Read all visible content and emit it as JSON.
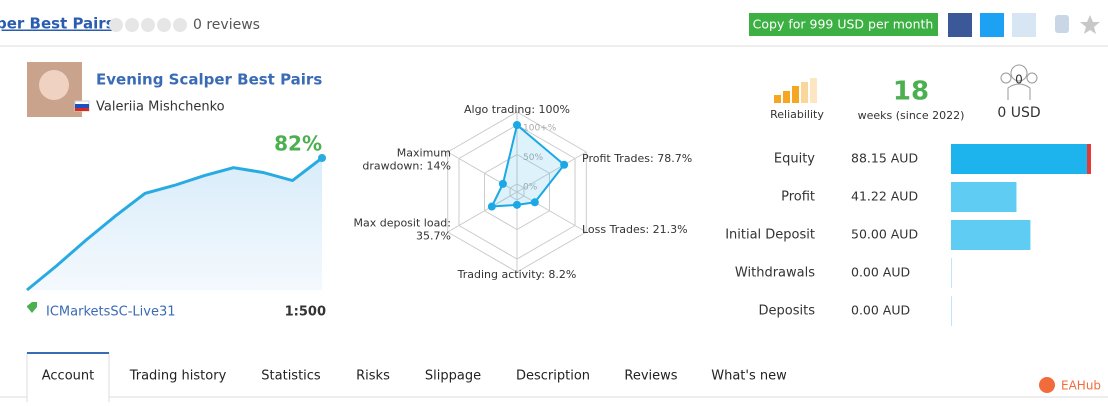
{
  "header": {
    "title": "per Best Pairs",
    "reviews": "0 reviews",
    "copy_button": "Copy for 999 USD per month"
  },
  "profile": {
    "name": "Evening Scalper Best Pairs",
    "author": "Valeriia Mishchenko",
    "growth": "82%",
    "broker": "ICMarketsSC-Live31",
    "leverage": "1:500"
  },
  "growth_chart": {
    "type": "line",
    "values": [
      0,
      15,
      31,
      46,
      60,
      65,
      71,
      76,
      73,
      68,
      82
    ],
    "color": "#29abe2"
  },
  "radar": {
    "type": "radar",
    "color": "#1aa9e6",
    "ticks": [
      {
        "value": 100,
        "label": "100+%"
      },
      {
        "value": 50,
        "label": "50%"
      },
      {
        "value": 0,
        "label": "0%"
      }
    ],
    "axes": [
      {
        "label": [
          "Algo trading: 100%"
        ],
        "value": 100
      },
      {
        "label": [
          "Profit Trades: 78.7%"
        ],
        "value": 78.7
      },
      {
        "label": [
          "Loss Trades: 21.3%"
        ],
        "value": 21.3
      },
      {
        "label": [
          "Trading activity: 8.2%"
        ],
        "value": 8.2
      },
      {
        "label": [
          "Max deposit load:",
          "35.7%"
        ],
        "value": 35.7
      },
      {
        "label": [
          "Maximum",
          "drawdown: 14%"
        ],
        "value": 14
      }
    ]
  },
  "summary": {
    "reliability": "Reliability",
    "weeks": "18",
    "weeks_label": "weeks (since 2022)",
    "subscribers": "0",
    "subscribers_funds": "0 USD"
  },
  "balance": {
    "type": "bar",
    "categories": [
      "Equity",
      "Profit",
      "Initial Deposit",
      "Withdrawals",
      "Deposits"
    ],
    "values": [
      88.15,
      41.22,
      50,
      0,
      0
    ],
    "value_labels": [
      "88.15 AUD",
      "41.22 AUD",
      "50.00 AUD",
      "0.00 AUD",
      "0.00 AUD"
    ],
    "colors": [
      "#1db4ee",
      "#5fcdf3",
      "#5fcdf3",
      "#5fcdf3",
      "#5fcdf3"
    ]
  },
  "tabs": [
    "Account",
    "Trading history",
    "Statistics",
    "Risks",
    "Slippage",
    "Description",
    "Reviews",
    "What's new"
  ],
  "watermark": "EAHub"
}
